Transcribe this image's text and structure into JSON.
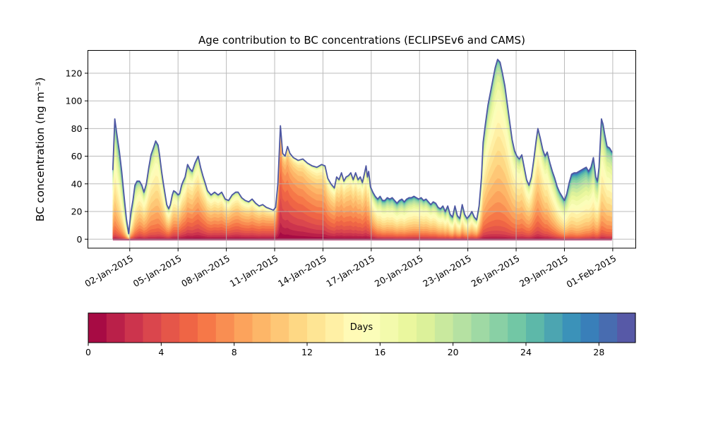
{
  "title": "Age contribution to BC concentrations (ECLIPSEv6 and CAMS)",
  "ylabel": "BC concentration (ng m⁻³)",
  "chart_data": {
    "type": "area",
    "subtype": "stacked-age-contribution",
    "title": "Age contribution to BC concentrations (ECLIPSEv6 and CAMS)",
    "xlabel": "",
    "ylabel": "BC concentration (ng m⁻³)",
    "xlim": [
      -0.6,
      33.43
    ],
    "ylim": [
      -6.5,
      136.5
    ],
    "grid": true,
    "x_unit": "day of January 2015",
    "x_tick_days": [
      2,
      5,
      8,
      11,
      14,
      17,
      20,
      23,
      26,
      29,
      32
    ],
    "x_tick_labels": [
      "02-Jan-2015",
      "05-Jan-2015",
      "08-Jan-2015",
      "11-Jan-2015",
      "14-Jan-2015",
      "17-Jan-2015",
      "20-Jan-2015",
      "23-Jan-2015",
      "26-Jan-2015",
      "29-Jan-2015",
      "01-Feb-2015"
    ],
    "y_ticks": [
      0,
      20,
      40,
      60,
      80,
      100,
      120
    ],
    "n_age_bins": 30,
    "age_range_days": [
      0,
      30
    ],
    "series_total": [
      [
        0.95,
        50
      ],
      [
        1.07,
        87
      ],
      [
        1.2,
        76
      ],
      [
        1.36,
        63
      ],
      [
        1.5,
        49
      ],
      [
        1.64,
        32
      ],
      [
        1.79,
        15
      ],
      [
        1.93,
        4
      ],
      [
        2.08,
        20
      ],
      [
        2.2,
        28
      ],
      [
        2.32,
        39
      ],
      [
        2.45,
        42
      ],
      [
        2.6,
        42
      ],
      [
        2.75,
        39
      ],
      [
        2.88,
        34
      ],
      [
        3.03,
        40
      ],
      [
        3.17,
        51
      ],
      [
        3.32,
        61
      ],
      [
        3.47,
        66
      ],
      [
        3.61,
        71
      ],
      [
        3.76,
        68
      ],
      [
        3.85,
        61
      ],
      [
        3.98,
        49
      ],
      [
        4.08,
        41
      ],
      [
        4.2,
        32
      ],
      [
        4.3,
        25
      ],
      [
        4.42,
        22
      ],
      [
        4.52,
        25
      ],
      [
        4.64,
        32
      ],
      [
        4.73,
        35
      ],
      [
        4.86,
        34
      ],
      [
        5.0,
        32
      ],
      [
        5.1,
        33
      ],
      [
        5.22,
        39
      ],
      [
        5.32,
        42
      ],
      [
        5.44,
        45
      ],
      [
        5.59,
        54
      ],
      [
        5.73,
        51
      ],
      [
        5.88,
        49
      ],
      [
        6.05,
        55
      ],
      [
        6.25,
        60
      ],
      [
        6.4,
        52
      ],
      [
        6.54,
        46
      ],
      [
        6.7,
        40
      ],
      [
        6.83,
        35
      ],
      [
        7.05,
        32
      ],
      [
        7.27,
        34
      ],
      [
        7.49,
        32
      ],
      [
        7.71,
        34
      ],
      [
        7.93,
        29
      ],
      [
        8.14,
        28
      ],
      [
        8.36,
        32
      ],
      [
        8.58,
        34
      ],
      [
        8.73,
        34
      ],
      [
        8.95,
        30
      ],
      [
        9.17,
        28
      ],
      [
        9.39,
        27
      ],
      [
        9.6,
        29
      ],
      [
        9.82,
        26
      ],
      [
        10.04,
        24
      ],
      [
        10.26,
        25
      ],
      [
        10.48,
        23
      ],
      [
        10.7,
        22
      ],
      [
        10.92,
        21
      ],
      [
        11.06,
        23
      ],
      [
        11.2,
        40
      ],
      [
        11.36,
        82
      ],
      [
        11.5,
        62
      ],
      [
        11.65,
        60
      ],
      [
        11.8,
        67
      ],
      [
        11.95,
        62
      ],
      [
        12.16,
        59
      ],
      [
        12.46,
        57
      ],
      [
        12.75,
        58
      ],
      [
        13.04,
        55
      ],
      [
        13.33,
        53
      ],
      [
        13.62,
        52
      ],
      [
        13.92,
        54
      ],
      [
        14.13,
        53
      ],
      [
        14.3,
        44
      ],
      [
        14.5,
        40
      ],
      [
        14.71,
        37
      ],
      [
        14.85,
        45
      ],
      [
        15.0,
        43
      ],
      [
        15.15,
        48
      ],
      [
        15.3,
        42
      ],
      [
        15.44,
        45
      ],
      [
        15.59,
        46
      ],
      [
        15.73,
        48
      ],
      [
        15.88,
        43
      ],
      [
        16.03,
        48
      ],
      [
        16.18,
        43
      ],
      [
        16.32,
        45
      ],
      [
        16.45,
        41
      ],
      [
        16.57,
        47
      ],
      [
        16.68,
        53
      ],
      [
        16.76,
        45
      ],
      [
        16.84,
        49
      ],
      [
        16.95,
        38
      ],
      [
        17.1,
        34
      ],
      [
        17.25,
        31
      ],
      [
        17.4,
        29
      ],
      [
        17.55,
        31
      ],
      [
        17.7,
        28
      ],
      [
        17.85,
        28
      ],
      [
        18.0,
        30
      ],
      [
        18.15,
        29
      ],
      [
        18.3,
        30
      ],
      [
        18.45,
        28
      ],
      [
        18.6,
        26
      ],
      [
        18.75,
        28
      ],
      [
        18.9,
        29
      ],
      [
        19.05,
        27
      ],
      [
        19.2,
        29
      ],
      [
        19.35,
        30
      ],
      [
        19.5,
        30
      ],
      [
        19.65,
        31
      ],
      [
        19.8,
        30
      ],
      [
        19.95,
        29
      ],
      [
        20.1,
        30
      ],
      [
        20.25,
        28
      ],
      [
        20.4,
        29
      ],
      [
        20.55,
        27
      ],
      [
        20.7,
        25
      ],
      [
        20.85,
        27
      ],
      [
        21.0,
        26
      ],
      [
        21.15,
        23
      ],
      [
        21.3,
        22
      ],
      [
        21.45,
        24
      ],
      [
        21.6,
        20
      ],
      [
        21.75,
        24
      ],
      [
        21.9,
        18
      ],
      [
        22.05,
        16
      ],
      [
        22.2,
        24
      ],
      [
        22.35,
        17
      ],
      [
        22.5,
        15
      ],
      [
        22.65,
        25
      ],
      [
        22.8,
        18
      ],
      [
        22.95,
        15
      ],
      [
        23.1,
        17
      ],
      [
        23.25,
        20
      ],
      [
        23.4,
        16
      ],
      [
        23.55,
        14
      ],
      [
        23.7,
        24
      ],
      [
        23.85,
        45
      ],
      [
        23.95,
        70
      ],
      [
        24.1,
        84
      ],
      [
        24.25,
        97
      ],
      [
        24.4,
        106
      ],
      [
        24.55,
        115
      ],
      [
        24.7,
        124
      ],
      [
        24.85,
        130
      ],
      [
        25.0,
        128
      ],
      [
        25.15,
        120
      ],
      [
        25.3,
        111
      ],
      [
        25.45,
        98
      ],
      [
        25.6,
        85
      ],
      [
        25.75,
        72
      ],
      [
        25.9,
        64
      ],
      [
        26.05,
        60
      ],
      [
        26.2,
        58
      ],
      [
        26.35,
        61
      ],
      [
        26.5,
        52
      ],
      [
        26.65,
        43
      ],
      [
        26.8,
        39
      ],
      [
        26.95,
        45
      ],
      [
        27.1,
        58
      ],
      [
        27.25,
        72
      ],
      [
        27.35,
        80
      ],
      [
        27.5,
        73
      ],
      [
        27.65,
        65
      ],
      [
        27.8,
        60
      ],
      [
        27.93,
        63
      ],
      [
        28.1,
        55
      ],
      [
        28.25,
        49
      ],
      [
        28.4,
        44
      ],
      [
        28.55,
        38
      ],
      [
        28.7,
        34
      ],
      [
        28.85,
        31
      ],
      [
        29.0,
        28
      ],
      [
        29.15,
        33
      ],
      [
        29.3,
        41
      ],
      [
        29.45,
        47
      ],
      [
        29.6,
        48
      ],
      [
        29.75,
        48
      ],
      [
        29.9,
        49
      ],
      [
        30.05,
        50
      ],
      [
        30.2,
        51
      ],
      [
        30.35,
        52
      ],
      [
        30.5,
        49
      ],
      [
        30.65,
        52
      ],
      [
        30.8,
        59
      ],
      [
        30.95,
        45
      ],
      [
        31.05,
        42
      ],
      [
        31.15,
        52
      ],
      [
        31.3,
        87
      ],
      [
        31.4,
        83
      ],
      [
        31.5,
        76
      ],
      [
        31.65,
        67
      ],
      [
        31.8,
        66
      ],
      [
        31.95,
        63
      ]
    ],
    "age_profile_model": [
      [
        0.95,
        13,
        5.5
      ],
      [
        1.8,
        16,
        6
      ],
      [
        2.6,
        11.5,
        5.5
      ],
      [
        3.6,
        12,
        5
      ],
      [
        4.5,
        10.5,
        5.5
      ],
      [
        5.6,
        9.5,
        6
      ],
      [
        6.9,
        9,
        5.5
      ],
      [
        8.6,
        8.5,
        5.5
      ],
      [
        10.0,
        8,
        5
      ],
      [
        11.05,
        7,
        4.5
      ],
      [
        11.36,
        4.5,
        3.5
      ],
      [
        12.0,
        5.5,
        4
      ],
      [
        13.0,
        6.5,
        4.5
      ],
      [
        14.5,
        8,
        5
      ],
      [
        16.0,
        8.5,
        5
      ],
      [
        16.7,
        9,
        5.5
      ],
      [
        17.5,
        13,
        6.5
      ],
      [
        19.0,
        13.5,
        6.5
      ],
      [
        20.5,
        12.5,
        6
      ],
      [
        22.0,
        13.5,
        6.5
      ],
      [
        23.5,
        12,
        6
      ],
      [
        24.9,
        12,
        5
      ],
      [
        26.0,
        11.5,
        5
      ],
      [
        27.3,
        10.5,
        5
      ],
      [
        28.6,
        13.5,
        6
      ],
      [
        29.8,
        16,
        6
      ],
      [
        30.8,
        14.5,
        6
      ],
      [
        31.3,
        13.5,
        5.5
      ],
      [
        31.95,
        13.5,
        5.5
      ]
    ],
    "colors": {
      "colormap": "Spectral",
      "colormap_anchors": [
        "#9e0142",
        "#d53e4f",
        "#f46d43",
        "#fdae61",
        "#fee08b",
        "#ffffbf",
        "#e6f598",
        "#abdda4",
        "#66c2a5",
        "#3288bd",
        "#5e4fa2"
      ],
      "grid": "#b0b0b0",
      "spine": "#000000",
      "top_edge": "#4f58a3",
      "baseline_edge": "#9e0142",
      "background": "#ffffff"
    },
    "colorbar": {
      "label": "Days",
      "ticks": [
        0,
        4,
        8,
        12,
        16,
        20,
        24,
        28
      ],
      "range": [
        0,
        30
      ],
      "n_segments": 30
    }
  }
}
